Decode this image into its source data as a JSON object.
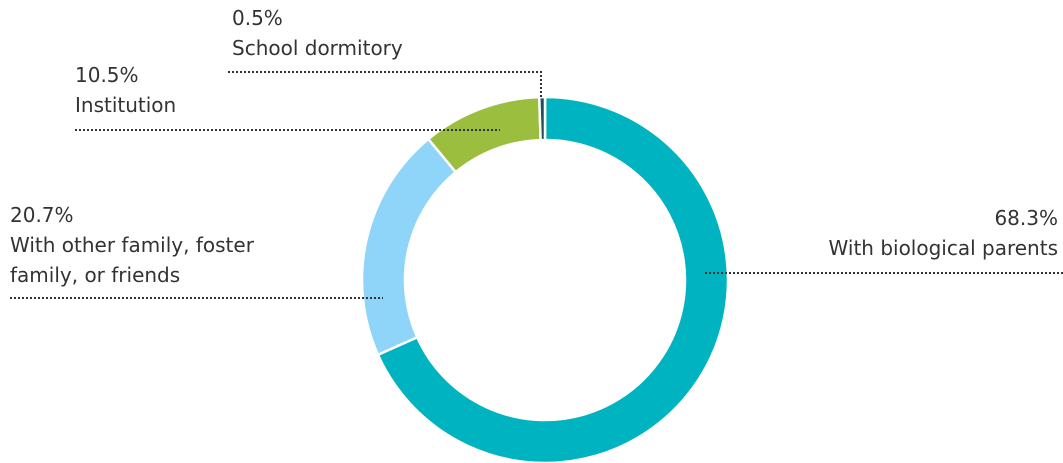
{
  "chart_data": {
    "type": "donut",
    "categories": [
      "With biological parents",
      "With other family, foster family, or friends",
      "Institution",
      "School dormitory"
    ],
    "values": [
      68.3,
      20.7,
      10.5,
      0.5
    ],
    "value_labels": [
      "68.3%",
      "20.7%",
      "10.5%",
      "0.5%"
    ],
    "colors": [
      "#00b3c1",
      "#8fd4f9",
      "#9bbe3f",
      "#234f5b"
    ]
  }
}
